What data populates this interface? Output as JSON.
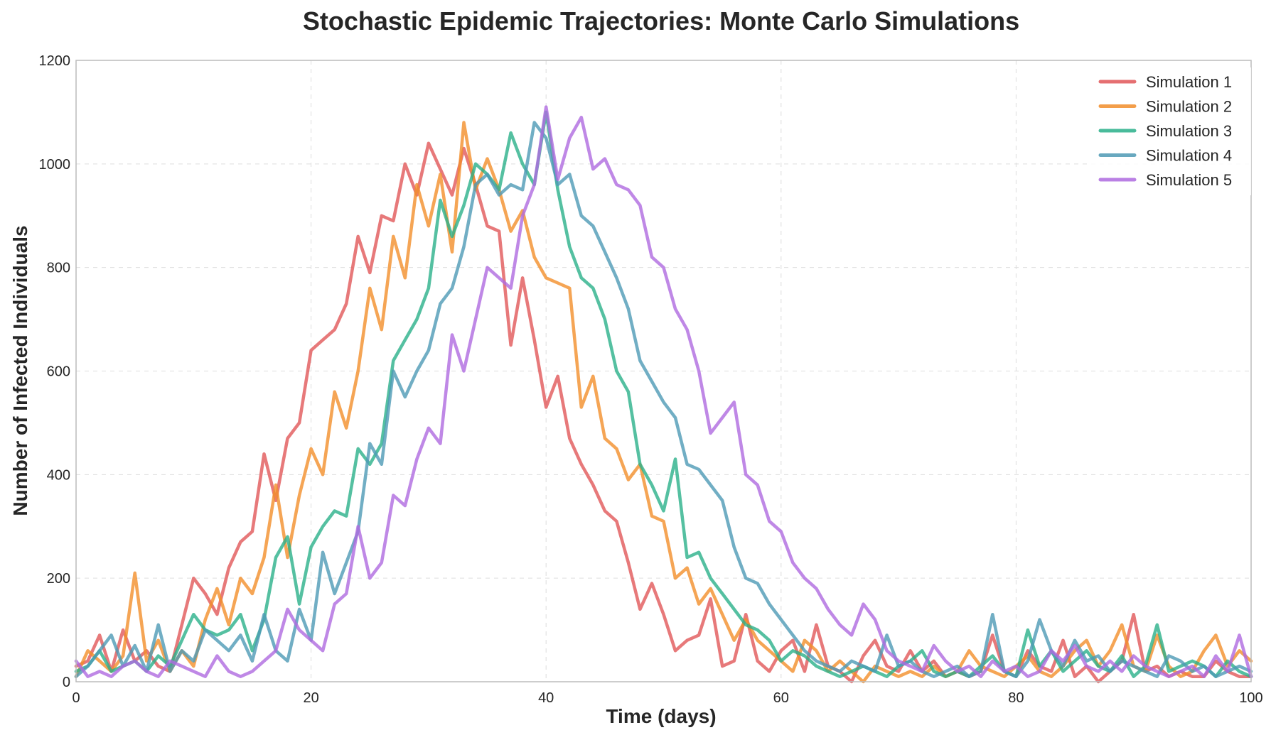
{
  "chart_data": {
    "type": "line",
    "title": "Stochastic Epidemic Trajectories: Monte Carlo Simulations",
    "xlabel": "Time (days)",
    "ylabel": "Number of Infected Individuals",
    "xlim": [
      0,
      100
    ],
    "ylim": [
      0,
      1200
    ],
    "xticks": [
      0,
      20,
      40,
      60,
      80,
      100
    ],
    "yticks": [
      0,
      200,
      400,
      600,
      800,
      1000,
      1200
    ],
    "grid": true,
    "legend_position": "top-right",
    "series": [
      {
        "name": "Simulation 1",
        "color": "#e15759",
        "x": [
          0,
          1,
          2,
          3,
          4,
          5,
          6,
          7,
          8,
          9,
          10,
          11,
          12,
          13,
          14,
          15,
          16,
          17,
          18,
          19,
          20,
          21,
          22,
          23,
          24,
          25,
          26,
          27,
          28,
          29,
          30,
          31,
          32,
          33,
          34,
          35,
          36,
          37,
          38,
          39,
          40,
          41,
          42,
          43,
          44,
          45,
          46,
          47,
          48,
          49,
          50,
          51,
          52,
          53,
          54,
          55,
          56,
          57,
          58,
          59,
          60,
          61,
          62,
          63,
          64,
          65,
          66,
          67,
          68,
          69,
          70,
          71,
          72,
          73,
          74,
          75,
          76,
          77,
          78,
          79,
          80,
          81,
          82,
          83,
          84,
          85,
          86,
          87,
          88,
          89,
          90,
          91,
          92,
          93,
          94,
          95,
          96,
          97,
          98,
          99,
          100
        ],
        "values": [
          30,
          40,
          90,
          20,
          100,
          40,
          60,
          30,
          20,
          110,
          200,
          170,
          130,
          220,
          270,
          290,
          440,
          350,
          470,
          500,
          640,
          660,
          680,
          730,
          860,
          790,
          900,
          890,
          1000,
          940,
          1040,
          990,
          940,
          1030,
          960,
          880,
          870,
          650,
          780,
          660,
          530,
          590,
          470,
          420,
          380,
          330,
          310,
          230,
          140,
          190,
          130,
          60,
          80,
          90,
          160,
          30,
          40,
          130,
          40,
          20,
          60,
          80,
          20,
          110,
          30,
          20,
          0,
          50,
          80,
          30,
          20,
          60,
          20,
          40,
          10,
          20,
          10,
          20,
          90,
          20,
          10,
          60,
          30,
          20,
          80,
          10,
          30,
          0,
          20,
          40,
          130,
          20,
          30,
          10,
          20,
          10,
          10,
          40,
          20,
          10,
          10
        ]
      },
      {
        "name": "Simulation 2",
        "color": "#f28e2b",
        "x": [
          0,
          1,
          2,
          3,
          4,
          5,
          6,
          7,
          8,
          9,
          10,
          11,
          12,
          13,
          14,
          15,
          16,
          17,
          18,
          19,
          20,
          21,
          22,
          23,
          24,
          25,
          26,
          27,
          28,
          29,
          30,
          31,
          32,
          33,
          34,
          35,
          36,
          37,
          38,
          39,
          40,
          41,
          42,
          43,
          44,
          45,
          46,
          47,
          48,
          49,
          50,
          51,
          52,
          53,
          54,
          55,
          56,
          57,
          58,
          59,
          60,
          61,
          62,
          63,
          64,
          65,
          66,
          67,
          68,
          69,
          70,
          71,
          72,
          73,
          74,
          75,
          76,
          77,
          78,
          79,
          80,
          81,
          82,
          83,
          84,
          85,
          86,
          87,
          88,
          89,
          90,
          91,
          92,
          93,
          94,
          95,
          96,
          97,
          98,
          99,
          100
        ],
        "values": [
          10,
          60,
          40,
          20,
          50,
          210,
          40,
          80,
          20,
          60,
          30,
          120,
          180,
          110,
          200,
          170,
          240,
          380,
          240,
          360,
          450,
          400,
          560,
          490,
          600,
          760,
          680,
          860,
          780,
          960,
          880,
          980,
          830,
          1080,
          950,
          1010,
          950,
          870,
          910,
          820,
          780,
          770,
          760,
          530,
          590,
          470,
          450,
          390,
          420,
          320,
          310,
          200,
          220,
          150,
          180,
          130,
          80,
          120,
          80,
          60,
          40,
          20,
          80,
          60,
          20,
          40,
          20,
          0,
          30,
          20,
          10,
          20,
          10,
          30,
          10,
          20,
          60,
          30,
          20,
          10,
          30,
          50,
          20,
          10,
          30,
          60,
          80,
          30,
          60,
          110,
          30,
          20,
          90,
          30,
          10,
          20,
          60,
          90,
          30,
          60,
          40
        ]
      },
      {
        "name": "Simulation 3",
        "color": "#2ab08a",
        "x": [
          0,
          1,
          2,
          3,
          4,
          5,
          6,
          7,
          8,
          9,
          10,
          11,
          12,
          13,
          14,
          15,
          16,
          17,
          18,
          19,
          20,
          21,
          22,
          23,
          24,
          25,
          26,
          27,
          28,
          29,
          30,
          31,
          32,
          33,
          34,
          35,
          36,
          37,
          38,
          39,
          40,
          41,
          42,
          43,
          44,
          45,
          46,
          47,
          48,
          49,
          50,
          51,
          52,
          53,
          54,
          55,
          56,
          57,
          58,
          59,
          60,
          61,
          62,
          63,
          64,
          65,
          66,
          67,
          68,
          69,
          70,
          71,
          72,
          73,
          74,
          75,
          76,
          77,
          78,
          79,
          80,
          81,
          82,
          83,
          84,
          85,
          86,
          87,
          88,
          89,
          90,
          91,
          92,
          93,
          94,
          95,
          96,
          97,
          98,
          99,
          100
        ],
        "values": [
          20,
          30,
          60,
          20,
          30,
          40,
          20,
          50,
          30,
          80,
          130,
          100,
          90,
          100,
          130,
          60,
          120,
          240,
          280,
          150,
          260,
          300,
          330,
          320,
          450,
          420,
          460,
          620,
          660,
          700,
          760,
          930,
          860,
          920,
          1000,
          980,
          950,
          1060,
          1000,
          960,
          1100,
          950,
          840,
          780,
          760,
          700,
          600,
          560,
          420,
          380,
          330,
          430,
          240,
          250,
          200,
          170,
          140,
          110,
          100,
          80,
          40,
          60,
          50,
          30,
          20,
          10,
          20,
          30,
          20,
          10,
          30,
          40,
          60,
          20,
          10,
          20,
          10,
          30,
          50,
          20,
          10,
          100,
          30,
          60,
          20,
          40,
          60,
          30,
          20,
          50,
          10,
          30,
          110,
          20,
          30,
          40,
          30,
          10,
          40,
          20,
          10
        ]
      },
      {
        "name": "Simulation 4",
        "color": "#4e9ab5",
        "x": [
          0,
          1,
          2,
          3,
          4,
          5,
          6,
          7,
          8,
          9,
          10,
          11,
          12,
          13,
          14,
          15,
          16,
          17,
          18,
          19,
          20,
          21,
          22,
          23,
          24,
          25,
          26,
          27,
          28,
          29,
          30,
          31,
          32,
          33,
          34,
          35,
          36,
          37,
          38,
          39,
          40,
          41,
          42,
          43,
          44,
          45,
          46,
          47,
          48,
          49,
          50,
          51,
          52,
          53,
          54,
          55,
          56,
          57,
          58,
          59,
          60,
          61,
          62,
          63,
          64,
          65,
          66,
          67,
          68,
          69,
          70,
          71,
          72,
          73,
          74,
          75,
          76,
          77,
          78,
          79,
          80,
          81,
          82,
          83,
          84,
          85,
          86,
          87,
          88,
          89,
          90,
          91,
          92,
          93,
          94,
          95,
          96,
          97,
          98,
          99,
          100
        ],
        "values": [
          10,
          30,
          60,
          90,
          30,
          70,
          20,
          110,
          20,
          60,
          40,
          100,
          80,
          60,
          90,
          40,
          130,
          60,
          40,
          140,
          80,
          250,
          170,
          230,
          290,
          460,
          420,
          600,
          550,
          600,
          640,
          730,
          760,
          840,
          960,
          980,
          940,
          960,
          950,
          1080,
          1050,
          960,
          980,
          900,
          880,
          830,
          780,
          720,
          620,
          580,
          540,
          510,
          420,
          410,
          380,
          350,
          260,
          200,
          190,
          150,
          120,
          90,
          60,
          40,
          30,
          20,
          40,
          30,
          20,
          90,
          30,
          40,
          20,
          10,
          20,
          30,
          10,
          20,
          130,
          20,
          10,
          40,
          120,
          60,
          30,
          80,
          40,
          50,
          20,
          40,
          30,
          20,
          10,
          50,
          40,
          20,
          30,
          10,
          20,
          30,
          20
        ]
      },
      {
        "name": "Simulation 5",
        "color": "#af6ae0",
        "x": [
          0,
          1,
          2,
          3,
          4,
          5,
          6,
          7,
          8,
          9,
          10,
          11,
          12,
          13,
          14,
          15,
          16,
          17,
          18,
          19,
          20,
          21,
          22,
          23,
          24,
          25,
          26,
          27,
          28,
          29,
          30,
          31,
          32,
          33,
          34,
          35,
          36,
          37,
          38,
          39,
          40,
          41,
          42,
          43,
          44,
          45,
          46,
          47,
          48,
          49,
          50,
          51,
          52,
          53,
          54,
          55,
          56,
          57,
          58,
          59,
          60,
          61,
          62,
          63,
          64,
          65,
          66,
          67,
          68,
          69,
          70,
          71,
          72,
          73,
          74,
          75,
          76,
          77,
          78,
          79,
          80,
          81,
          82,
          83,
          84,
          85,
          86,
          87,
          88,
          89,
          90,
          91,
          92,
          93,
          94,
          95,
          96,
          97,
          98,
          99,
          100
        ],
        "values": [
          40,
          10,
          20,
          10,
          30,
          40,
          20,
          10,
          40,
          30,
          20,
          10,
          50,
          20,
          10,
          20,
          40,
          60,
          140,
          100,
          80,
          60,
          150,
          170,
          300,
          200,
          230,
          360,
          340,
          430,
          490,
          460,
          670,
          600,
          700,
          800,
          780,
          760,
          900,
          960,
          1110,
          970,
          1050,
          1090,
          990,
          1010,
          960,
          950,
          920,
          820,
          800,
          720,
          680,
          600,
          480,
          510,
          540,
          400,
          380,
          310,
          290,
          230,
          200,
          180,
          140,
          110,
          90,
          150,
          120,
          60,
          40,
          30,
          20,
          70,
          40,
          20,
          30,
          10,
          40,
          20,
          30,
          10,
          20,
          60,
          40,
          70,
          30,
          20,
          40,
          20,
          50,
          30,
          20,
          10,
          20,
          30,
          10,
          50,
          20,
          90,
          10
        ]
      }
    ]
  }
}
